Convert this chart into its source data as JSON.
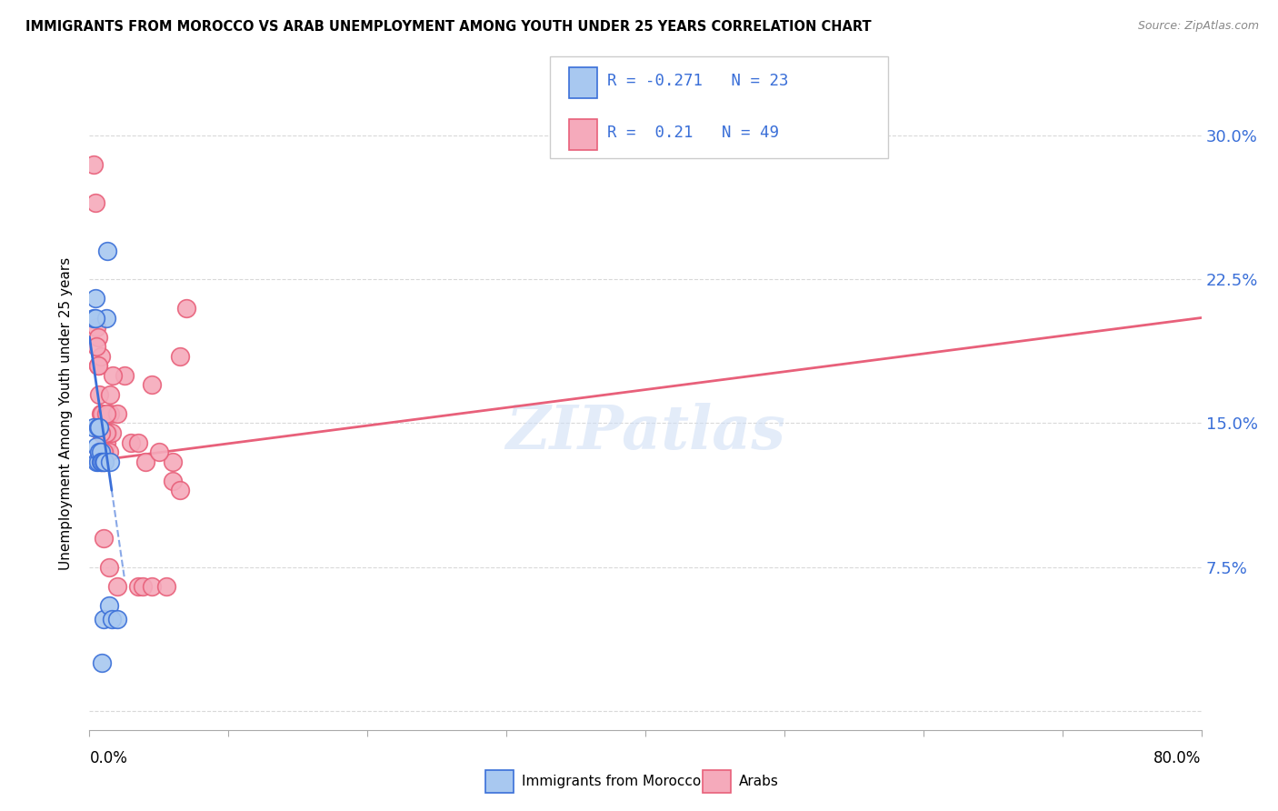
{
  "title": "IMMIGRANTS FROM MOROCCO VS ARAB UNEMPLOYMENT AMONG YOUTH UNDER 25 YEARS CORRELATION CHART",
  "source": "Source: ZipAtlas.com",
  "ylabel": "Unemployment Among Youth under 25 years",
  "legend_label1": "Immigrants from Morocco",
  "legend_label2": "Arabs",
  "r1": -0.271,
  "n1": 23,
  "r2": 0.21,
  "n2": 49,
  "color1": "#a8c8f0",
  "color2": "#f5aabb",
  "line1_color": "#3a6fd8",
  "line2_color": "#e8607a",
  "background": "#ffffff",
  "watermark": "ZIPatlas",
  "xlim": [
    0,
    80
  ],
  "ylim": [
    -1,
    32
  ],
  "ytick_vals": [
    0,
    7.5,
    15.0,
    22.5,
    30.0
  ],
  "ytick_labels": [
    "",
    "7.5%",
    "15.0%",
    "22.5%",
    "30.0%"
  ],
  "blue_x": [
    0.3,
    0.3,
    0.4,
    0.5,
    0.5,
    0.6,
    0.6,
    0.7,
    0.7,
    0.8,
    0.8,
    0.9,
    0.9,
    1.0,
    1.0,
    1.1,
    1.2,
    1.3,
    1.4,
    1.5,
    1.6,
    2.0,
    0.4
  ],
  "blue_y": [
    14.8,
    20.5,
    21.5,
    13.8,
    13.0,
    13.0,
    14.8,
    14.8,
    13.5,
    13.5,
    13.0,
    13.0,
    2.5,
    4.8,
    13.0,
    13.0,
    20.5,
    24.0,
    5.5,
    13.0,
    4.8,
    4.8,
    20.5
  ],
  "pink_x": [
    0.3,
    0.4,
    0.5,
    0.6,
    0.6,
    0.7,
    0.8,
    0.8,
    0.9,
    0.9,
    1.0,
    1.1,
    1.1,
    1.2,
    1.3,
    1.4,
    1.5,
    1.5,
    1.6,
    2.0,
    2.5,
    3.0,
    3.5,
    4.0,
    6.0,
    6.5,
    1.0,
    2.0,
    3.5,
    3.8,
    4.5,
    5.0,
    5.5,
    6.0,
    6.5,
    7.0,
    4.5,
    1.7,
    1.2,
    0.8,
    0.9,
    1.0,
    1.4,
    1.2,
    0.8,
    0.6,
    0.5,
    0.7,
    1.0
  ],
  "pink_y": [
    28.5,
    26.5,
    20.0,
    19.5,
    18.0,
    16.5,
    18.5,
    15.5,
    15.5,
    14.5,
    14.5,
    14.5,
    13.5,
    14.0,
    14.5,
    13.5,
    15.5,
    16.5,
    14.5,
    15.5,
    17.5,
    14.0,
    14.0,
    13.0,
    13.0,
    18.5,
    9.0,
    6.5,
    6.5,
    6.5,
    6.5,
    13.5,
    6.5,
    12.0,
    11.5,
    21.0,
    17.0,
    17.5,
    15.5,
    13.0,
    13.5,
    13.0,
    7.5,
    14.5,
    14.5,
    18.0,
    19.0,
    13.5,
    13.5
  ],
  "blue_line_x0": 0.0,
  "blue_line_y0": 19.5,
  "blue_line_x1": 1.6,
  "blue_line_y1": 11.5,
  "blue_dash_x1": 2.5,
  "blue_dash_y1": 7.0,
  "pink_line_x0": 0.0,
  "pink_line_y0": 13.0,
  "pink_line_x1": 80.0,
  "pink_line_y1": 20.5
}
